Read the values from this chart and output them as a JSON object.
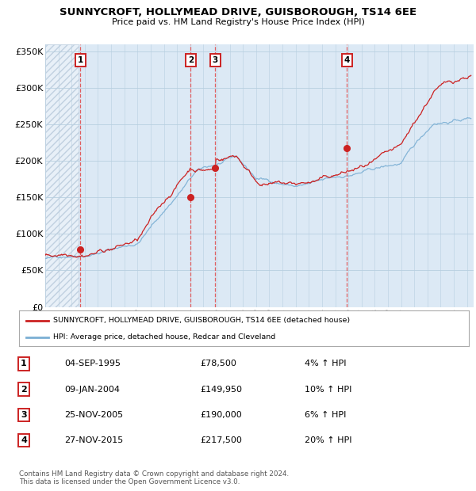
{
  "title": "SUNNYCROFT, HOLLYMEAD DRIVE, GUISBOROUGH, TS14 6EE",
  "subtitle": "Price paid vs. HM Land Registry's House Price Index (HPI)",
  "legend_line1": "SUNNYCROFT, HOLLYMEAD DRIVE, GUISBOROUGH, TS14 6EE (detached house)",
  "legend_line2": "HPI: Average price, detached house, Redcar and Cleveland",
  "transactions": [
    {
      "num": 1,
      "date": "04-SEP-1995",
      "price": 78500,
      "pct": "4%",
      "date_val": 1995.67
    },
    {
      "num": 2,
      "date": "09-JAN-2004",
      "price": 149950,
      "pct": "10%",
      "date_val": 2004.03
    },
    {
      "num": 3,
      "date": "25-NOV-2005",
      "price": 190000,
      "pct": "6%",
      "date_val": 2005.9
    },
    {
      "num": 4,
      "date": "27-NOV-2015",
      "price": 217500,
      "pct": "20%",
      "date_val": 2015.9
    }
  ],
  "footer1": "Contains HM Land Registry data © Crown copyright and database right 2024.",
  "footer2": "This data is licensed under the Open Government Licence v3.0.",
  "hpi_color": "#7bafd4",
  "price_color": "#cc2222",
  "bg_color": "#dce9f5",
  "hatch_color": "#c0d0e0",
  "grid_color": "#b8cfe0",
  "dashed_color": "#e05050",
  "ylim": [
    0,
    360000
  ],
  "xlim_start": 1993.0,
  "xlim_end": 2025.5,
  "yticks": [
    0,
    50000,
    100000,
    150000,
    200000,
    250000,
    300000,
    350000
  ],
  "ytick_labels": [
    "£0",
    "£50K",
    "£100K",
    "£150K",
    "£200K",
    "£250K",
    "£300K",
    "£350K"
  ]
}
